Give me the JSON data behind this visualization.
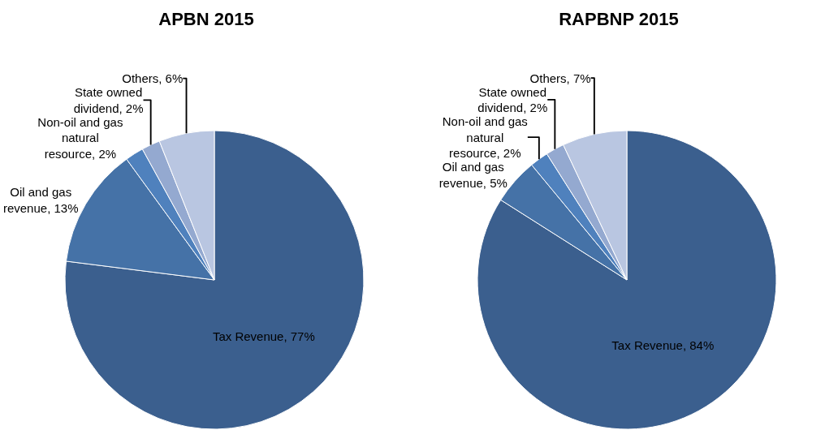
{
  "chart_data": [
    {
      "type": "pie",
      "title": "APBN 2015",
      "categories": [
        "Tax Revenue",
        "Oil and gas revenue",
        "Non-oil and gas natural resource",
        "State owned dividend",
        "Others"
      ],
      "values": [
        77,
        13,
        2,
        2,
        6
      ],
      "value_labels": [
        "77%",
        "13%",
        "2%",
        "2%",
        "6%"
      ],
      "colors": [
        "#3b5f8e",
        "#4572a7",
        "#4f81bd",
        "#94a9d0",
        "#b9c6e1"
      ],
      "legend": false
    },
    {
      "type": "pie",
      "title": "RAPBNP 2015",
      "categories": [
        "Tax Revenue",
        "Oil and gas revenue",
        "Non-oil and gas natural resource",
        "State owned dividend",
        "Others"
      ],
      "values": [
        84,
        5,
        2,
        2,
        7
      ],
      "value_labels": [
        "84%",
        "5%",
        "2%",
        "2%",
        "7%"
      ],
      "colors": [
        "#3b5f8e",
        "#4572a7",
        "#4f81bd",
        "#94a9d0",
        "#b9c6e1"
      ],
      "legend": false
    }
  ]
}
